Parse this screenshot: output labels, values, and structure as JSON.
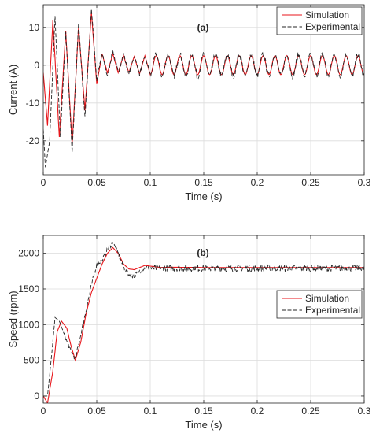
{
  "chart_data": [
    {
      "type": "line",
      "title": "(a)",
      "xlabel": "Time (s)",
      "ylabel": "Current (A)",
      "xlim": [
        0,
        0.3
      ],
      "ylim": [
        -29,
        16
      ],
      "xticks": [
        0,
        0.05,
        0.1,
        0.15,
        0.2,
        0.25,
        0.3
      ],
      "xtick_labels": [
        "0",
        "0.05",
        "0.1",
        "0.15",
        "0.2",
        "0.25",
        "0.3"
      ],
      "yticks": [
        -20,
        -10,
        0,
        10
      ],
      "ytick_labels": [
        "-20",
        "-10",
        "0",
        "10"
      ],
      "grid": true,
      "legend_position": "top-right",
      "series": [
        {
          "name": "Simulation",
          "color": "#e8161b",
          "dash": "solid",
          "x": [
            0,
            0.004,
            0.009,
            0.015,
            0.021,
            0.027,
            0.033,
            0.039,
            0.045,
            0.05,
            0.055,
            0.06,
            0.065,
            0.07,
            0.075,
            0.08,
            0.085,
            0.09,
            0.095,
            0.1
          ],
          "y": [
            -2,
            -16,
            12,
            -19,
            9,
            -21,
            10,
            -12,
            14,
            -5,
            3,
            -2,
            3,
            -2,
            2.6,
            -2,
            2.3,
            -2.3,
            2.5,
            -2.5
          ],
          "steady_state": {
            "from": 0.1,
            "to": 0.3,
            "amplitude": 2.5,
            "period": 0.0111,
            "reference_x": 0.1,
            "reference_y": -2.5
          }
        },
        {
          "name": "Experimental",
          "color": "#262626",
          "dash": "dashed",
          "x": [
            0,
            0.002,
            0.006,
            0.011,
            0.016,
            0.021,
            0.027,
            0.033,
            0.039,
            0.045,
            0.05,
            0.055,
            0.06,
            0.065,
            0.07,
            0.075,
            0.08,
            0.085,
            0.09,
            0.095,
            0.1
          ],
          "y": [
            -17,
            -27,
            -20,
            13,
            -19,
            9,
            -23,
            11,
            -14,
            15,
            -4,
            3,
            -3,
            4,
            -2,
            3,
            -2.5,
            2.5,
            -2.4,
            2.4,
            -2.5
          ],
          "steady_state": {
            "from": 0.1,
            "to": 0.3,
            "amplitude": 2.8,
            "period": 0.0111,
            "reference_x": 0.1,
            "reference_y": -2.5,
            "noise": 0.8
          }
        }
      ]
    },
    {
      "type": "line",
      "title": "(b)",
      "xlabel": "Time (s)",
      "ylabel": "Speed (rpm)",
      "xlim": [
        0,
        0.3
      ],
      "ylim": [
        -100,
        2250
      ],
      "xticks": [
        0,
        0.05,
        0.1,
        0.15,
        0.2,
        0.25,
        0.3
      ],
      "xtick_labels": [
        "0",
        "0.05",
        "0.1",
        "0.15",
        "0.2",
        "0.25",
        "0.3"
      ],
      "yticks": [
        0,
        500,
        1000,
        1500,
        2000
      ],
      "ytick_labels": [
        "0",
        "500",
        "1000",
        "1500",
        "2000"
      ],
      "grid": true,
      "legend_position": "center-right",
      "series": [
        {
          "name": "Simulation",
          "color": "#e8161b",
          "dash": "solid",
          "x": [
            0,
            0.004,
            0.009,
            0.013,
            0.017,
            0.022,
            0.026,
            0.03,
            0.035,
            0.04,
            0.045,
            0.05,
            0.055,
            0.06,
            0.065,
            0.07,
            0.075,
            0.08,
            0.085,
            0.09,
            0.095,
            0.1,
            0.11,
            0.12,
            0.15,
            0.2,
            0.25,
            0.3
          ],
          "y": [
            0,
            -100,
            350,
            900,
            1050,
            950,
            700,
            500,
            750,
            1150,
            1450,
            1650,
            1850,
            2000,
            2080,
            2000,
            1850,
            1780,
            1770,
            1800,
            1830,
            1820,
            1800,
            1805,
            1800,
            1800,
            1800,
            1800
          ]
        },
        {
          "name": "Experimental",
          "color": "#262626",
          "dash": "dashed",
          "x": [
            0,
            0.004,
            0.008,
            0.011,
            0.015,
            0.02,
            0.025,
            0.03,
            0.035,
            0.04,
            0.045,
            0.05,
            0.055,
            0.06,
            0.065,
            0.07,
            0.075,
            0.08,
            0.085,
            0.09,
            0.095,
            0.1
          ],
          "y": [
            0,
            0,
            600,
            1100,
            1050,
            850,
            650,
            520,
            850,
            1200,
            1550,
            1850,
            1900,
            2050,
            2150,
            2000,
            1800,
            1700,
            1680,
            1750,
            1800,
            1800
          ],
          "steady_state": {
            "from": 0.1,
            "to": 0.3,
            "mean": 1790,
            "noise": 45
          }
        }
      ]
    }
  ]
}
